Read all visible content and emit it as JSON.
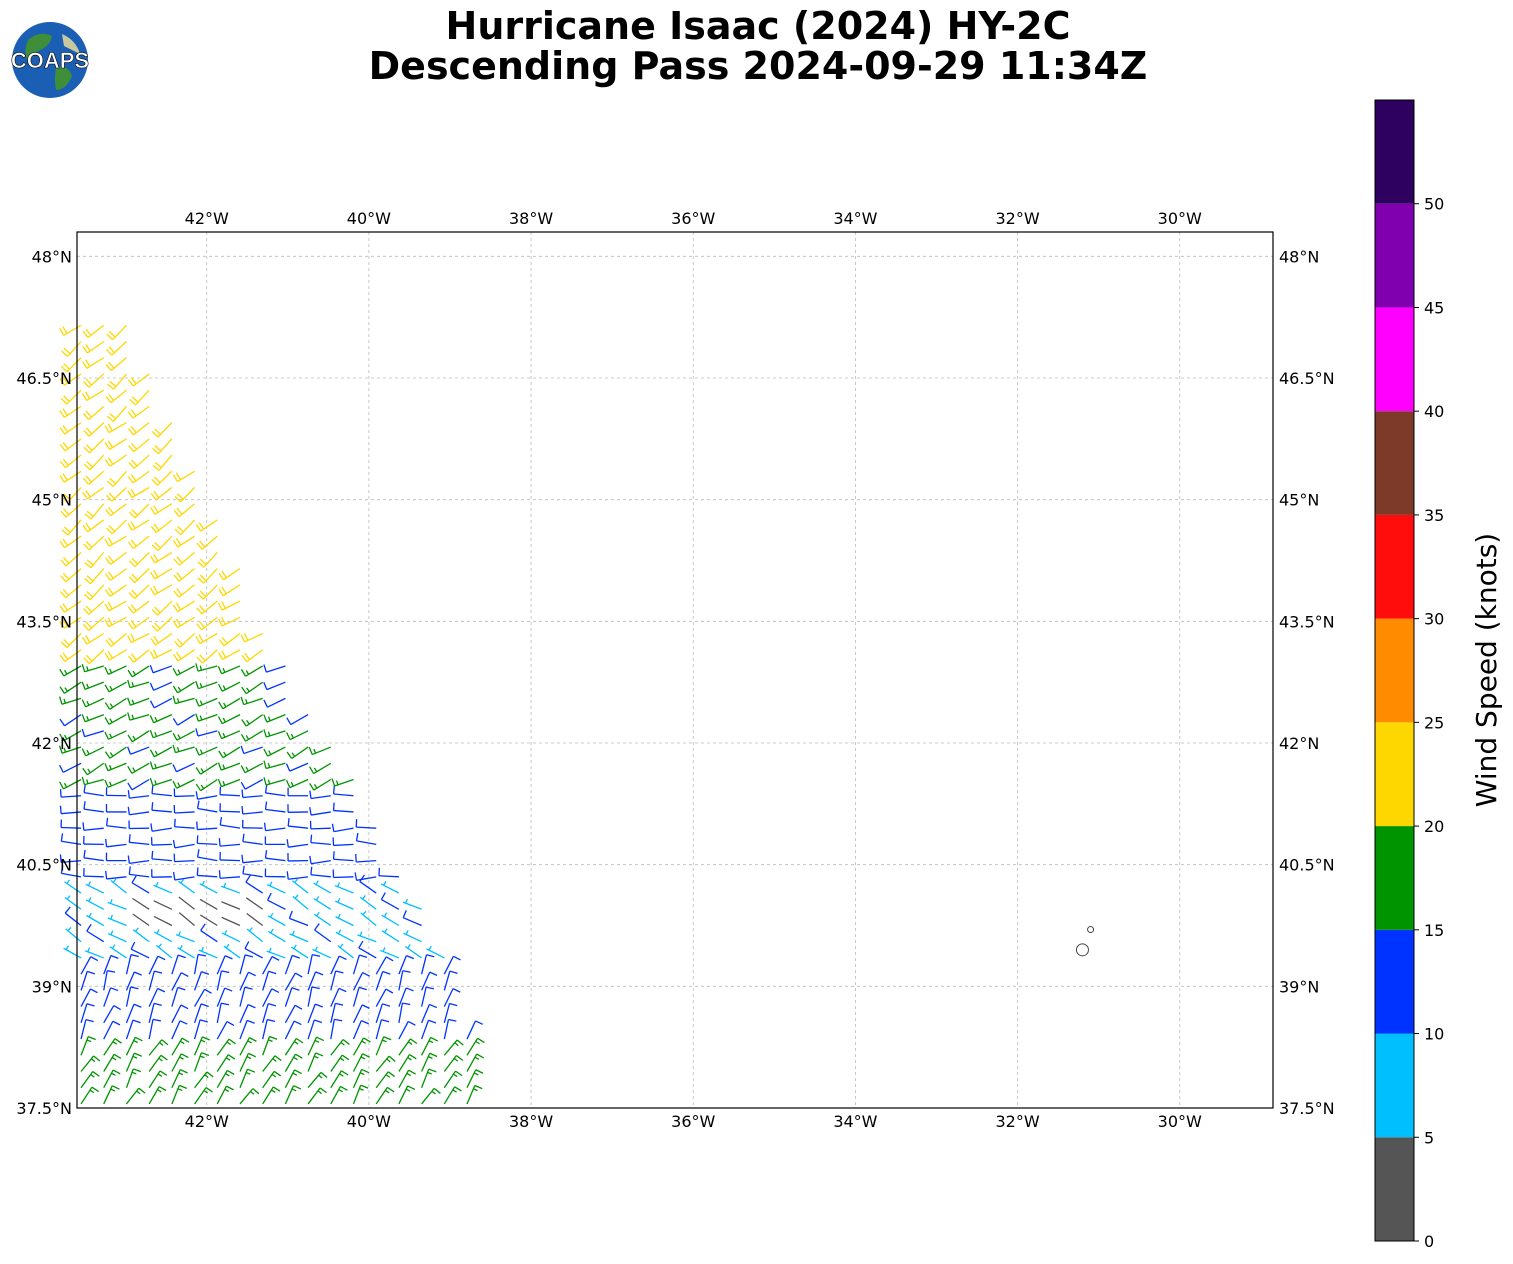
{
  "title": {
    "line1": "Hurricane Isaac (2024) HY-2C",
    "line2": "Descending Pass 2024-09-29 11:34Z"
  },
  "logo": {
    "text": "COAPS"
  },
  "map": {
    "lon_range": [
      -43.6,
      -28.85
    ],
    "lat_range": [
      37.5,
      48.3
    ],
    "lon_ticks": [
      "42°W",
      "40°W",
      "38°W",
      "36°W",
      "34°W",
      "32°W",
      "30°W"
    ],
    "lon_tick_values": [
      -42,
      -40,
      -38,
      -36,
      -34,
      -32,
      -30
    ],
    "lat_ticks": [
      "48°N",
      "46.5°N",
      "45°N",
      "43.5°N",
      "42°N",
      "40.5°N",
      "39°N",
      "37.5°N"
    ],
    "lat_tick_values": [
      48,
      46.5,
      45,
      43.5,
      42,
      40.5,
      39,
      37.5
    ],
    "gridlines": true,
    "islands": [
      {
        "lon": -31.2,
        "lat": 39.45
      },
      {
        "lon": -31.1,
        "lat": 39.7
      }
    ]
  },
  "colorbar": {
    "label": "Wind Speed (knots)",
    "tick_labels": [
      "0",
      "5",
      "10",
      "15",
      "20",
      "25",
      "30",
      "35",
      "40",
      "45",
      "50"
    ],
    "bins": [
      {
        "min": 0,
        "max": 5,
        "color": "#555555"
      },
      {
        "min": 5,
        "max": 10,
        "color": "#00bfff"
      },
      {
        "min": 10,
        "max": 15,
        "color": "#0033ff"
      },
      {
        "min": 15,
        "max": 20,
        "color": "#009400"
      },
      {
        "min": 20,
        "max": 25,
        "color": "#ffd700"
      },
      {
        "min": 25,
        "max": 30,
        "color": "#ff8c00"
      },
      {
        "min": 30,
        "max": 35,
        "color": "#ff0d0d"
      },
      {
        "min": 35,
        "max": 40,
        "color": "#7d3a28"
      },
      {
        "min": 40,
        "max": 45,
        "color": "#ff00ff"
      },
      {
        "min": 45,
        "max": 50,
        "color": "#8000b0"
      },
      {
        "min": 50,
        "max": 55,
        "color": "#2e0060"
      }
    ]
  },
  "wind_regions": [
    {
      "lat_min": 43.8,
      "lat_max": 47.3,
      "speed": 22,
      "dir": 230
    },
    {
      "lat_min": 43.1,
      "lat_max": 43.8,
      "speed": 22,
      "dir": 235
    },
    {
      "lat_min": 41.4,
      "lat_max": 43.1,
      "speed": 16,
      "dir": 245
    },
    {
      "lat_min": 40.2,
      "lat_max": 41.4,
      "speed": 12,
      "dir": 270
    },
    {
      "lat_min": 39.2,
      "lat_max": 40.2,
      "speed": 8,
      "dir": 300
    },
    {
      "lat_min": 38.2,
      "lat_max": 39.2,
      "speed": 12,
      "dir": 20
    },
    {
      "lat_min": 37.5,
      "lat_max": 38.2,
      "speed": 17,
      "dir": 30
    }
  ]
}
